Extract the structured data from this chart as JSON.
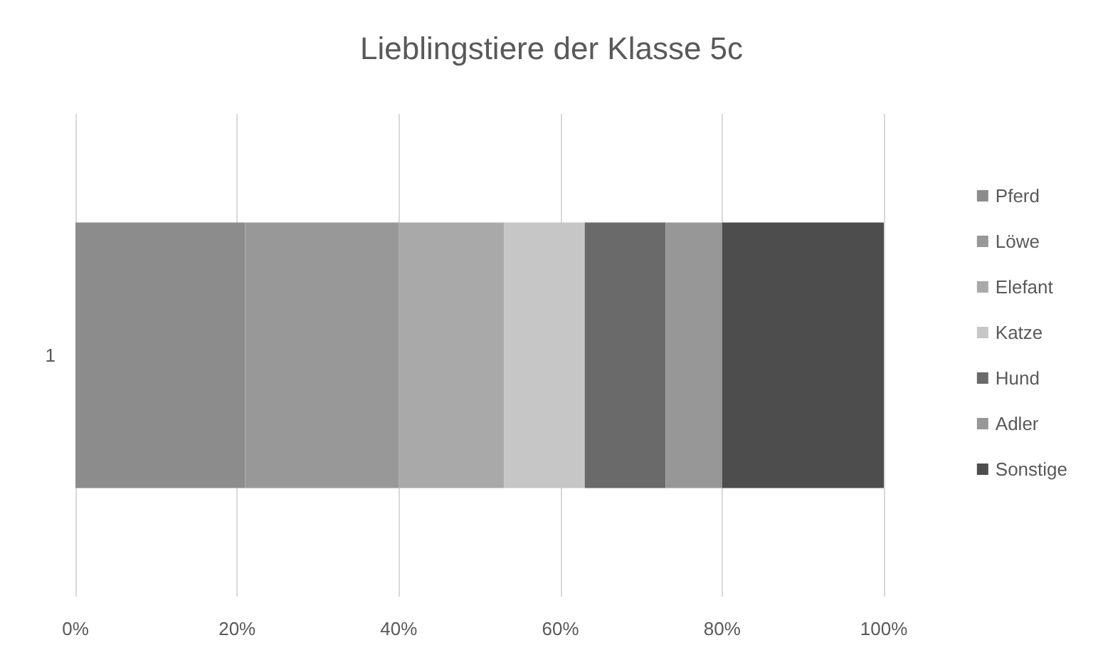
{
  "chart_data": {
    "type": "bar",
    "title": "Lieblingstiere der Klasse 5c",
    "orientation": "horizontal",
    "stacked": true,
    "categories": [
      "1"
    ],
    "series": [
      {
        "name": "Pferd",
        "color": "#8c8c8c",
        "values": [
          21
        ]
      },
      {
        "name": "Löwe",
        "color": "#989898",
        "values": [
          19
        ]
      },
      {
        "name": "Elefant",
        "color": "#a9a9a9",
        "values": [
          13
        ]
      },
      {
        "name": "Katze",
        "color": "#c6c6c6",
        "values": [
          10
        ]
      },
      {
        "name": "Hund",
        "color": "#6a6a6a",
        "values": [
          10
        ]
      },
      {
        "name": "Adler",
        "color": "#979797",
        "values": [
          7
        ]
      },
      {
        "name": "Sonstige",
        "color": "#4d4d4d",
        "values": [
          20
        ]
      }
    ],
    "xlim": [
      0,
      100
    ],
    "xticks": [
      {
        "value": 0,
        "label": "0%"
      },
      {
        "value": 20,
        "label": "20%"
      },
      {
        "value": 40,
        "label": "40%"
      },
      {
        "value": 60,
        "label": "60%"
      },
      {
        "value": 80,
        "label": "80%"
      },
      {
        "value": 100,
        "label": "100%"
      }
    ],
    "grid": "x",
    "legend": "right"
  }
}
